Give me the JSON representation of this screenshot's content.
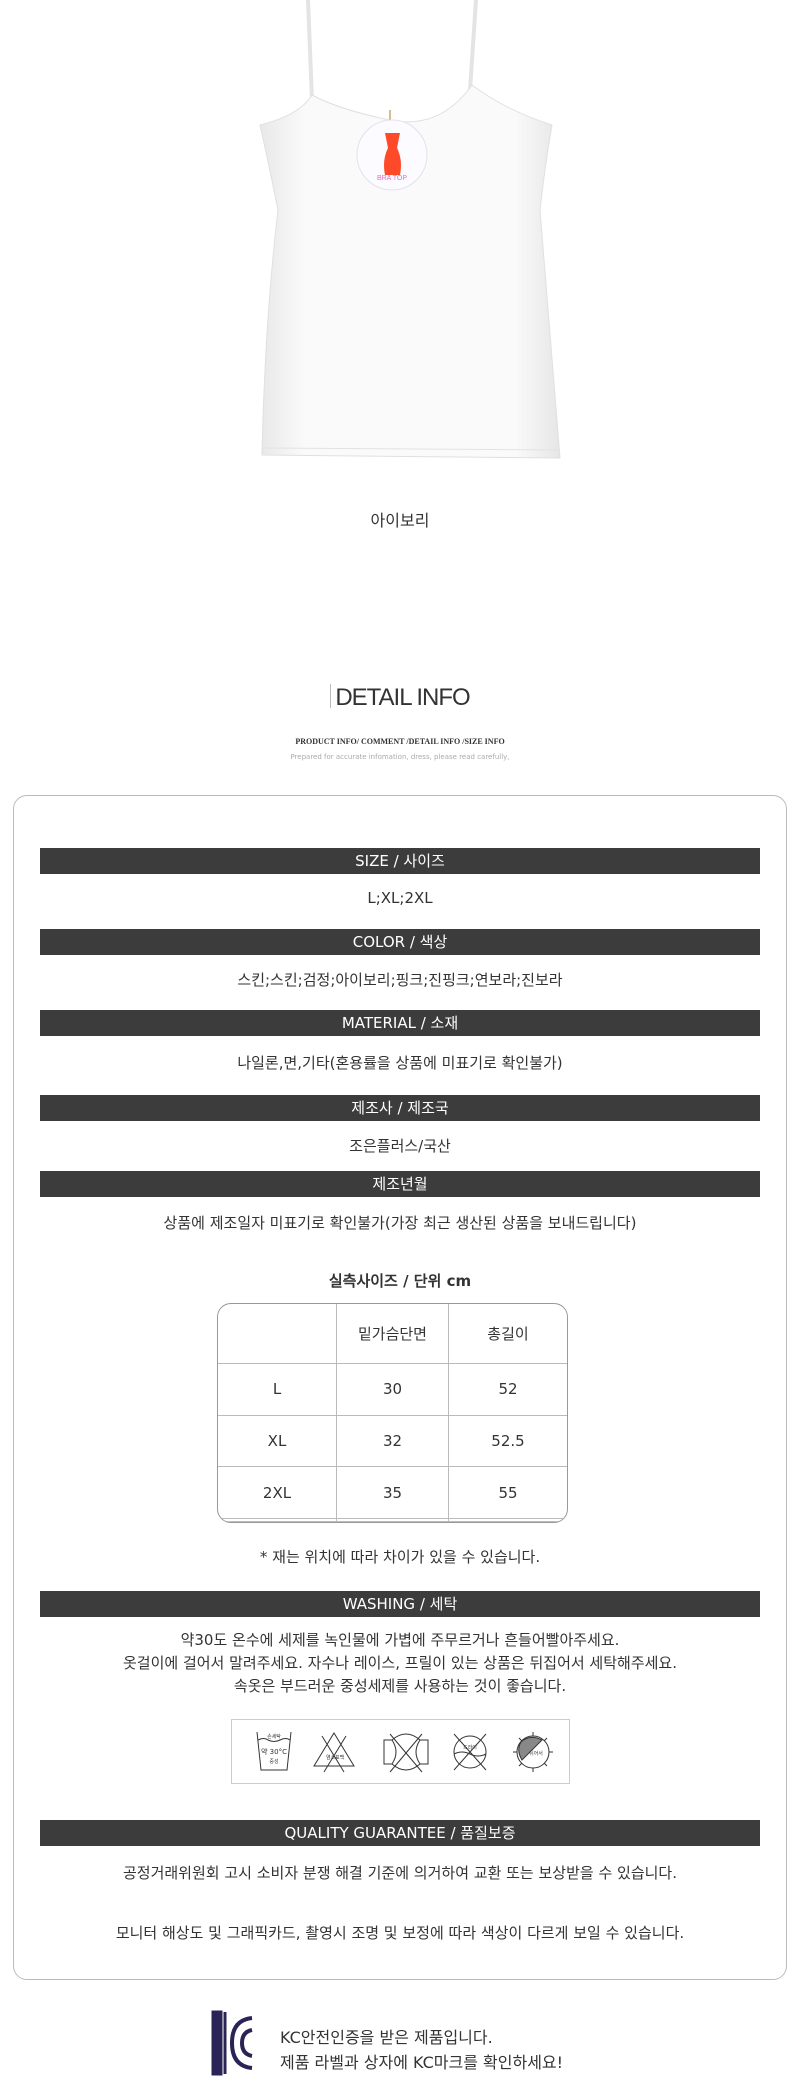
{
  "product": {
    "tag_text": "BRA TOP",
    "caption": "아이보리"
  },
  "detail": {
    "title": "DETAIL INFO",
    "subtitle": "PRODUCT INFO/ COMMENT /DETAIL INFO /SIZE INFO",
    "note": "Prepared for accurate infomation, dress, please read carefully,"
  },
  "sections": {
    "size": {
      "label": "SIZE / 사이즈",
      "value": "L;XL;2XL"
    },
    "color": {
      "label": "COLOR / 색상",
      "value": "스킨;스킨;검정;아이보리;핑크;진핑크;연보라;진보라"
    },
    "material": {
      "label": "MATERIAL / 소재",
      "value": "나일론,면,기타(혼용률을 상품에 미표기로 확인불가)"
    },
    "maker": {
      "label": "제조사 / 제조국",
      "value": "조은플러스/국산"
    },
    "date": {
      "label": "제조년월",
      "value": "상품에 제조일자 미표기로 확인불가(가장 최근 생산된 상품을 보내드립니다)"
    }
  },
  "size_table": {
    "title": "실측사이즈 / 단위 cm",
    "headers": [
      "",
      "밑가슴단면",
      "총길이"
    ],
    "rows": [
      [
        "L",
        "30",
        "52"
      ],
      [
        "XL",
        "32",
        "52.5"
      ],
      [
        "2XL",
        "35",
        "55"
      ],
      [
        "",
        "",
        ""
      ],
      [
        "",
        "",
        ""
      ]
    ],
    "note": "* 재는 위치에 따라 차이가 있을 수 있습니다."
  },
  "washing": {
    "label": "WASHING / 세탁",
    "lines": [
      "약30도 온수에 세제를 녹인물에 가볍에 주무르거나 흔들어빨아주세요.",
      "옷걸이에 걸어서 말려주세요. 자수나 레이스, 프릴이 있는 상품은 뒤집어서 세탁해주세요.",
      "속옷은 부드러운 중성세제를 사용하는 것이 좋습니다."
    ],
    "icons": [
      {
        "name": "hand-wash-30-icon",
        "text": [
          "손세탁",
          "약 30°C",
          "중성"
        ]
      },
      {
        "name": "no-bleach-icon",
        "text": [
          "염소",
          "표백"
        ]
      },
      {
        "name": "no-wring-icon"
      },
      {
        "name": "no-dry-clean-icon",
        "text": [
          "드라이"
        ]
      },
      {
        "name": "shade-dry-icon",
        "text": [
          "뉘어서"
        ]
      }
    ]
  },
  "quality": {
    "label": "QUALITY GUARANTEE / 품질보증",
    "line1": "공정거래위원회 고시 소비자 분쟁 해결 기준에 의거하여 교환 또는 보상받을 수 있습니다.",
    "line2": "모니터 해상도 및 그래픽카드, 촬영시 조명 및 보정에 따라 색상이 다르게 보일 수 있습니다."
  },
  "kc": {
    "logo_text": "KC",
    "line1": "KC안전인증을 받은 제품입니다.",
    "line2": "제품 라벨과 상자에 KC마크를 확인하세요!",
    "color": "#2a2356"
  }
}
